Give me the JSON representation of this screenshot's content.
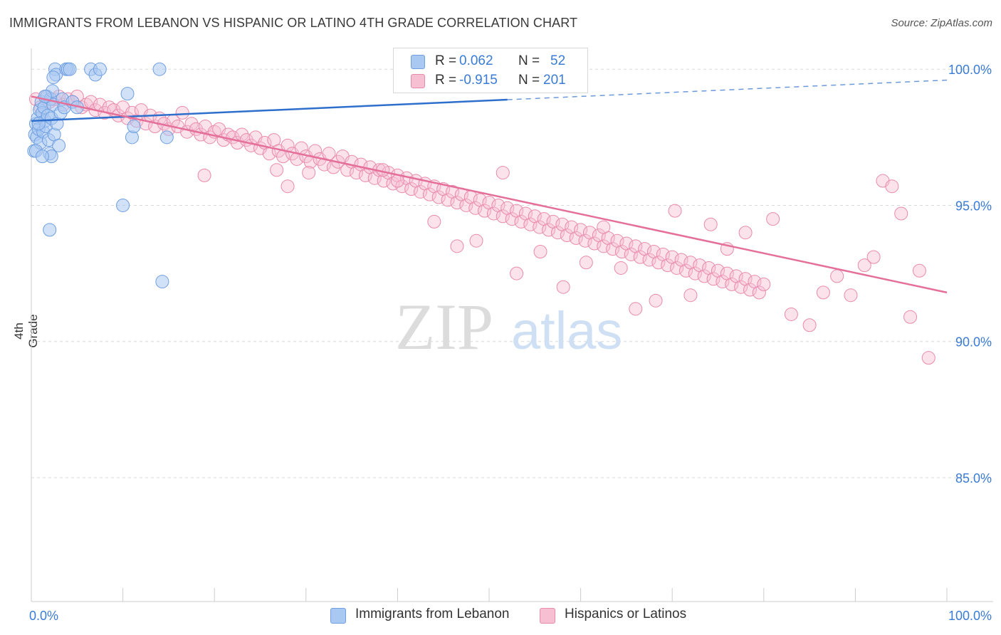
{
  "title": "IMMIGRANTS FROM LEBANON VS HISPANIC OR LATINO 4TH GRADE CORRELATION CHART",
  "source": "Source: ZipAtlas.com",
  "watermark": {
    "zip": "ZIP",
    "atlas": "atlas"
  },
  "legend": {
    "r_label": "R =",
    "n_label": "N =",
    "rows": [
      {
        "r": "0.062",
        "n": "52",
        "color": "#a9c8f2",
        "border": "#6f9fe0"
      },
      {
        "r": "-0.915",
        "n": "201",
        "color": "#f7bfd2",
        "border": "#e98aab"
      }
    ]
  },
  "colors": {
    "blue_line": "#2f6fcc",
    "pink_line": "#e4709a",
    "blue_fill": "#a9c8f2",
    "pink_fill": "#f7bfd2",
    "axis_text": "#3a7bd5"
  },
  "chart_data": {
    "type": "scatter",
    "title": "IMMIGRANTS FROM LEBANON VS HISPANIC OR LATINO 4TH GRADE CORRELATION CHART",
    "xlabel": "",
    "ylabel": "4th Grade",
    "xlim": [
      0,
      100
    ],
    "ylim": [
      80,
      100.5
    ],
    "x_tick_labels": [
      "0.0%",
      "100.0%"
    ],
    "y_tick_labels": [
      "100.0%",
      "95.0%",
      "90.0%",
      "85.0%"
    ],
    "y_ticks": [
      100,
      95,
      90,
      85
    ],
    "legend_position": "top-center",
    "grid": true,
    "series": [
      {
        "name": "Immigrants from Lebanon",
        "r": 0.062,
        "n": 52,
        "trend": {
          "x": [
            0,
            100
          ],
          "y": [
            98.1,
            99.6
          ],
          "solid_until": 52
        },
        "points": [
          [
            0.3,
            97.0
          ],
          [
            0.4,
            97.6
          ],
          [
            0.5,
            98.0
          ],
          [
            0.6,
            97.5
          ],
          [
            0.7,
            98.2
          ],
          [
            0.8,
            97.8
          ],
          [
            0.9,
            98.5
          ],
          [
            1.0,
            97.3
          ],
          [
            1.1,
            98.8
          ],
          [
            1.2,
            98.4
          ],
          [
            1.3,
            97.7
          ],
          [
            1.4,
            98.6
          ],
          [
            1.5,
            98.1
          ],
          [
            1.6,
            97.9
          ],
          [
            1.7,
            99.0
          ],
          [
            1.8,
            98.3
          ],
          [
            1.9,
            97.4
          ],
          [
            2.0,
            96.9
          ],
          [
            2.1,
            98.9
          ],
          [
            2.2,
            98.2
          ],
          [
            2.3,
            99.2
          ],
          [
            2.4,
            98.7
          ],
          [
            2.5,
            97.6
          ],
          [
            2.6,
            100.0
          ],
          [
            2.7,
            99.8
          ],
          [
            2.8,
            98.0
          ],
          [
            3.0,
            97.2
          ],
          [
            3.2,
            98.4
          ],
          [
            3.4,
            98.9
          ],
          [
            3.6,
            98.6
          ],
          [
            3.8,
            100.0
          ],
          [
            4.0,
            100.0
          ],
          [
            4.2,
            100.0
          ],
          [
            4.5,
            98.8
          ],
          [
            5.0,
            98.6
          ],
          [
            6.5,
            100.0
          ],
          [
            7.0,
            99.8
          ],
          [
            7.5,
            100.0
          ],
          [
            10.0,
            95.0
          ],
          [
            10.5,
            99.1
          ],
          [
            11.0,
            97.5
          ],
          [
            11.2,
            97.9
          ],
          [
            14.0,
            100.0
          ],
          [
            14.3,
            92.2
          ],
          [
            14.8,
            97.5
          ],
          [
            2.0,
            94.1
          ],
          [
            2.2,
            96.8
          ],
          [
            0.5,
            97.0
          ],
          [
            0.8,
            98.0
          ],
          [
            1.5,
            99.0
          ],
          [
            2.4,
            99.7
          ],
          [
            1.2,
            96.8
          ]
        ]
      },
      {
        "name": "Hispanics or Latinos",
        "r": -0.915,
        "n": 201,
        "trend": {
          "x": [
            0,
            100
          ],
          "y": [
            99.0,
            91.8
          ]
        },
        "points": [
          [
            0.5,
            98.9
          ],
          [
            1.0,
            98.6
          ],
          [
            1.5,
            99.0
          ],
          [
            2.0,
            98.8
          ],
          [
            2.5,
            98.9
          ],
          [
            3.0,
            99.0
          ],
          [
            3.5,
            98.7
          ],
          [
            4.0,
            98.9
          ],
          [
            4.5,
            98.8
          ],
          [
            5.0,
            99.0
          ],
          [
            5.5,
            98.6
          ],
          [
            6.0,
            98.7
          ],
          [
            6.5,
            98.8
          ],
          [
            7.0,
            98.5
          ],
          [
            7.5,
            98.7
          ],
          [
            8.0,
            98.4
          ],
          [
            8.5,
            98.6
          ],
          [
            9.0,
            98.5
          ],
          [
            9.5,
            98.3
          ],
          [
            10.0,
            98.6
          ],
          [
            10.5,
            98.2
          ],
          [
            11.0,
            98.4
          ],
          [
            11.5,
            98.1
          ],
          [
            12.0,
            98.5
          ],
          [
            12.5,
            98.0
          ],
          [
            13.0,
            98.3
          ],
          [
            13.5,
            97.9
          ],
          [
            14.0,
            98.2
          ],
          [
            14.5,
            98.0
          ],
          [
            15.0,
            97.8
          ],
          [
            15.5,
            98.1
          ],
          [
            16.0,
            97.9
          ],
          [
            16.5,
            98.4
          ],
          [
            17.0,
            97.7
          ],
          [
            17.5,
            98.0
          ],
          [
            18.0,
            97.8
          ],
          [
            18.5,
            97.6
          ],
          [
            19.0,
            97.9
          ],
          [
            19.5,
            97.5
          ],
          [
            20.0,
            97.7
          ],
          [
            20.5,
            97.8
          ],
          [
            21.0,
            97.4
          ],
          [
            21.5,
            97.6
          ],
          [
            22.0,
            97.5
          ],
          [
            22.5,
            97.3
          ],
          [
            23.0,
            97.6
          ],
          [
            23.5,
            97.4
          ],
          [
            24.0,
            97.2
          ],
          [
            24.5,
            97.5
          ],
          [
            25.0,
            97.1
          ],
          [
            25.5,
            97.3
          ],
          [
            26.0,
            96.9
          ],
          [
            26.5,
            97.4
          ],
          [
            27.0,
            97.0
          ],
          [
            27.5,
            96.8
          ],
          [
            28.0,
            97.2
          ],
          [
            28.5,
            96.9
          ],
          [
            29.0,
            96.7
          ],
          [
            29.5,
            97.1
          ],
          [
            30.0,
            96.8
          ],
          [
            30.5,
            96.6
          ],
          [
            31.0,
            97.0
          ],
          [
            31.5,
            96.7
          ],
          [
            32.0,
            96.5
          ],
          [
            32.5,
            96.9
          ],
          [
            33.0,
            96.4
          ],
          [
            33.5,
            96.6
          ],
          [
            34.0,
            96.8
          ],
          [
            34.5,
            96.3
          ],
          [
            35.0,
            96.6
          ],
          [
            35.5,
            96.2
          ],
          [
            36.0,
            96.5
          ],
          [
            36.5,
            96.1
          ],
          [
            37.0,
            96.4
          ],
          [
            37.5,
            96.0
          ],
          [
            38.0,
            96.3
          ],
          [
            38.5,
            95.9
          ],
          [
            39.0,
            96.2
          ],
          [
            39.5,
            95.8
          ],
          [
            40.0,
            96.1
          ],
          [
            40.5,
            95.7
          ],
          [
            41.0,
            96.0
          ],
          [
            41.5,
            95.6
          ],
          [
            42.0,
            95.9
          ],
          [
            42.5,
            95.5
          ],
          [
            43.0,
            95.8
          ],
          [
            43.5,
            95.4
          ],
          [
            44.0,
            95.7
          ],
          [
            44.5,
            95.3
          ],
          [
            45.0,
            95.6
          ],
          [
            45.5,
            95.2
          ],
          [
            46.0,
            95.5
          ],
          [
            46.5,
            95.1
          ],
          [
            47.0,
            95.4
          ],
          [
            47.5,
            95.0
          ],
          [
            48.0,
            95.3
          ],
          [
            48.5,
            94.9
          ],
          [
            49.0,
            95.2
          ],
          [
            49.5,
            94.8
          ],
          [
            50.0,
            95.1
          ],
          [
            50.5,
            94.7
          ],
          [
            51.0,
            95.0
          ],
          [
            51.5,
            94.6
          ],
          [
            52.0,
            94.9
          ],
          [
            52.5,
            94.5
          ],
          [
            53.0,
            94.8
          ],
          [
            53.5,
            94.4
          ],
          [
            54.0,
            94.7
          ],
          [
            54.5,
            94.3
          ],
          [
            55.0,
            94.6
          ],
          [
            55.5,
            94.2
          ],
          [
            56.0,
            94.5
          ],
          [
            56.5,
            94.1
          ],
          [
            57.0,
            94.4
          ],
          [
            57.5,
            94.0
          ],
          [
            58.0,
            94.3
          ],
          [
            58.5,
            93.9
          ],
          [
            59.0,
            94.2
          ],
          [
            59.5,
            93.8
          ],
          [
            60.0,
            94.1
          ],
          [
            60.5,
            93.7
          ],
          [
            61.0,
            94.0
          ],
          [
            61.5,
            93.6
          ],
          [
            62.0,
            93.9
          ],
          [
            62.5,
            93.5
          ],
          [
            63.0,
            93.8
          ],
          [
            63.5,
            93.4
          ],
          [
            64.0,
            93.7
          ],
          [
            64.5,
            93.3
          ],
          [
            65.0,
            93.6
          ],
          [
            65.5,
            93.2
          ],
          [
            66.0,
            93.5
          ],
          [
            66.5,
            93.1
          ],
          [
            67.0,
            93.4
          ],
          [
            67.5,
            93.0
          ],
          [
            68.0,
            93.3
          ],
          [
            68.5,
            92.9
          ],
          [
            69.0,
            93.2
          ],
          [
            69.5,
            92.8
          ],
          [
            70.0,
            93.1
          ],
          [
            70.5,
            92.7
          ],
          [
            71.0,
            93.0
          ],
          [
            71.5,
            92.6
          ],
          [
            72.0,
            92.9
          ],
          [
            72.5,
            92.5
          ],
          [
            73.0,
            92.8
          ],
          [
            73.5,
            92.4
          ],
          [
            74.0,
            92.7
          ],
          [
            74.5,
            92.3
          ],
          [
            75.0,
            92.6
          ],
          [
            75.5,
            92.2
          ],
          [
            76.0,
            92.5
          ],
          [
            76.5,
            92.1
          ],
          [
            77.0,
            92.4
          ],
          [
            77.5,
            92.0
          ],
          [
            78.0,
            92.3
          ],
          [
            78.5,
            91.9
          ],
          [
            79.0,
            92.2
          ],
          [
            79.5,
            91.8
          ],
          [
            80.0,
            92.1
          ],
          [
            18.9,
            96.1
          ],
          [
            26.8,
            96.3
          ],
          [
            28.0,
            95.7
          ],
          [
            30.3,
            96.2
          ],
          [
            38.4,
            96.3
          ],
          [
            40.0,
            95.9
          ],
          [
            44.0,
            94.4
          ],
          [
            46.5,
            93.5
          ],
          [
            48.6,
            93.7
          ],
          [
            51.5,
            96.2
          ],
          [
            53.0,
            92.5
          ],
          [
            55.6,
            93.3
          ],
          [
            58.1,
            92.0
          ],
          [
            60.6,
            92.9
          ],
          [
            62.5,
            94.2
          ],
          [
            64.4,
            92.7
          ],
          [
            66.0,
            91.2
          ],
          [
            68.2,
            91.5
          ],
          [
            70.3,
            94.8
          ],
          [
            72.0,
            91.7
          ],
          [
            74.2,
            94.3
          ],
          [
            76.0,
            93.4
          ],
          [
            78.0,
            94.0
          ],
          [
            81.0,
            94.5
          ],
          [
            83.0,
            91.0
          ],
          [
            85.0,
            90.6
          ],
          [
            86.5,
            91.8
          ],
          [
            88.0,
            92.4
          ],
          [
            89.5,
            91.7
          ],
          [
            91.0,
            92.8
          ],
          [
            92.0,
            93.1
          ],
          [
            93.0,
            95.9
          ],
          [
            94.0,
            95.7
          ],
          [
            95.0,
            94.7
          ],
          [
            96.0,
            90.9
          ],
          [
            97.0,
            92.6
          ],
          [
            98.0,
            89.4
          ]
        ]
      }
    ]
  },
  "bottom_legend": [
    {
      "label": "Immigrants from Lebanon"
    },
    {
      "label": "Hispanics or Latinos"
    }
  ]
}
